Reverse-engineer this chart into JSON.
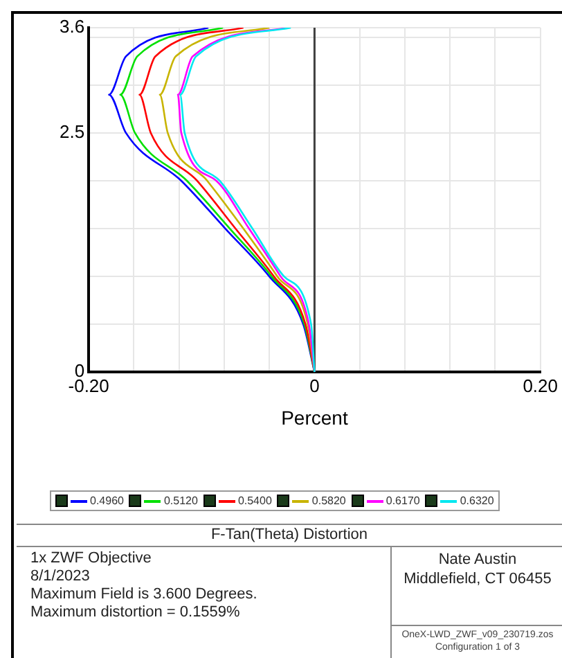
{
  "chart_data": {
    "type": "line",
    "title": "F-Tan(Theta) Distortion",
    "xlabel": "Percent",
    "xlim": [
      -0.2,
      0.2
    ],
    "xticks": [
      {
        "value": -0.2,
        "label": "-0.20"
      },
      {
        "value": -0.16,
        "label": null
      },
      {
        "value": -0.12,
        "label": null
      },
      {
        "value": -0.08,
        "label": null
      },
      {
        "value": -0.04,
        "label": null
      },
      0,
      {
        "value": 0.04,
        "label": null
      },
      {
        "value": 0.08,
        "label": null
      },
      {
        "value": 0.12,
        "label": null
      },
      {
        "value": 0.16,
        "label": null
      },
      {
        "value": 0.2,
        "label": "0.20"
      }
    ],
    "ylim": [
      0,
      3.6
    ],
    "yticks": [
      0,
      {
        "value": 0.5,
        "label": null
      },
      {
        "value": 1,
        "label": null
      },
      {
        "value": 1.5,
        "label": null
      },
      {
        "value": 2,
        "label": null
      },
      2.5,
      {
        "value": 3,
        "label": null
      },
      {
        "value": 3.5,
        "label": null
      },
      3.6
    ],
    "grid": true,
    "legend": "bottom",
    "marker": "none",
    "line_style": "solid",
    "ref_lines": [
      {
        "axis": "x",
        "value": 0,
        "color": "#404040"
      }
    ],
    "series": [
      {
        "name": "0.4960",
        "color": "#0000ff",
        "x": [
          0,
          -0.01,
          -0.04,
          -0.079,
          -0.118,
          -0.167,
          -0.182,
          -0.167,
          -0.094
        ],
        "values": [
          0,
          0.5,
          1,
          1.5,
          2,
          2.5,
          2.9,
          3.3,
          3.6
        ]
      },
      {
        "name": "0.5120",
        "color": "#00e000",
        "x": [
          0,
          -0.009,
          -0.038,
          -0.075,
          -0.113,
          -0.159,
          -0.172,
          -0.157,
          -0.081
        ],
        "values": [
          0,
          0.5,
          1,
          1.5,
          2,
          2.5,
          2.9,
          3.3,
          3.6
        ]
      },
      {
        "name": "0.5400",
        "color": "#ff0000",
        "x": [
          0,
          -0.008,
          -0.036,
          -0.07,
          -0.104,
          -0.145,
          -0.155,
          -0.141,
          -0.063
        ],
        "values": [
          0,
          0.5,
          1,
          1.5,
          2,
          2.5,
          2.9,
          3.3,
          3.6
        ]
      },
      {
        "name": "0.5820",
        "color": "#c8b400",
        "x": [
          0,
          -0.006,
          -0.033,
          -0.063,
          -0.095,
          -0.13,
          -0.137,
          -0.123,
          -0.04
        ],
        "values": [
          0,
          0.5,
          1,
          1.5,
          2,
          2.5,
          2.9,
          3.3,
          3.6
        ]
      },
      {
        "name": "0.6170",
        "color": "#ff00ff",
        "x": [
          0,
          -0.005,
          -0.03,
          -0.058,
          -0.087,
          -0.118,
          -0.121,
          -0.108,
          -0.023
        ],
        "values": [
          0,
          0.5,
          1,
          1.5,
          2,
          2.5,
          2.9,
          3.3,
          3.6
        ]
      },
      {
        "name": "0.6320",
        "color": "#00e8f0",
        "x": [
          0,
          -0.003,
          -0.027,
          -0.055,
          -0.084,
          -0.115,
          -0.119,
          -0.105,
          -0.021
        ],
        "values": [
          0,
          0.5,
          1,
          1.5,
          2,
          2.5,
          2.9,
          3.3,
          3.6
        ]
      }
    ],
    "annotations": [
      "1x ZWF Objective",
      "8/1/2023",
      "Maximum Field is 3.600 Degrees.",
      "Maximum distortion = 0.1559%",
      "Nate Austin",
      "Middlefield, CT 06455",
      "OneX-LWD_ZWF_v09_230719.zos",
      "Configuration 1 of 3"
    ]
  }
}
